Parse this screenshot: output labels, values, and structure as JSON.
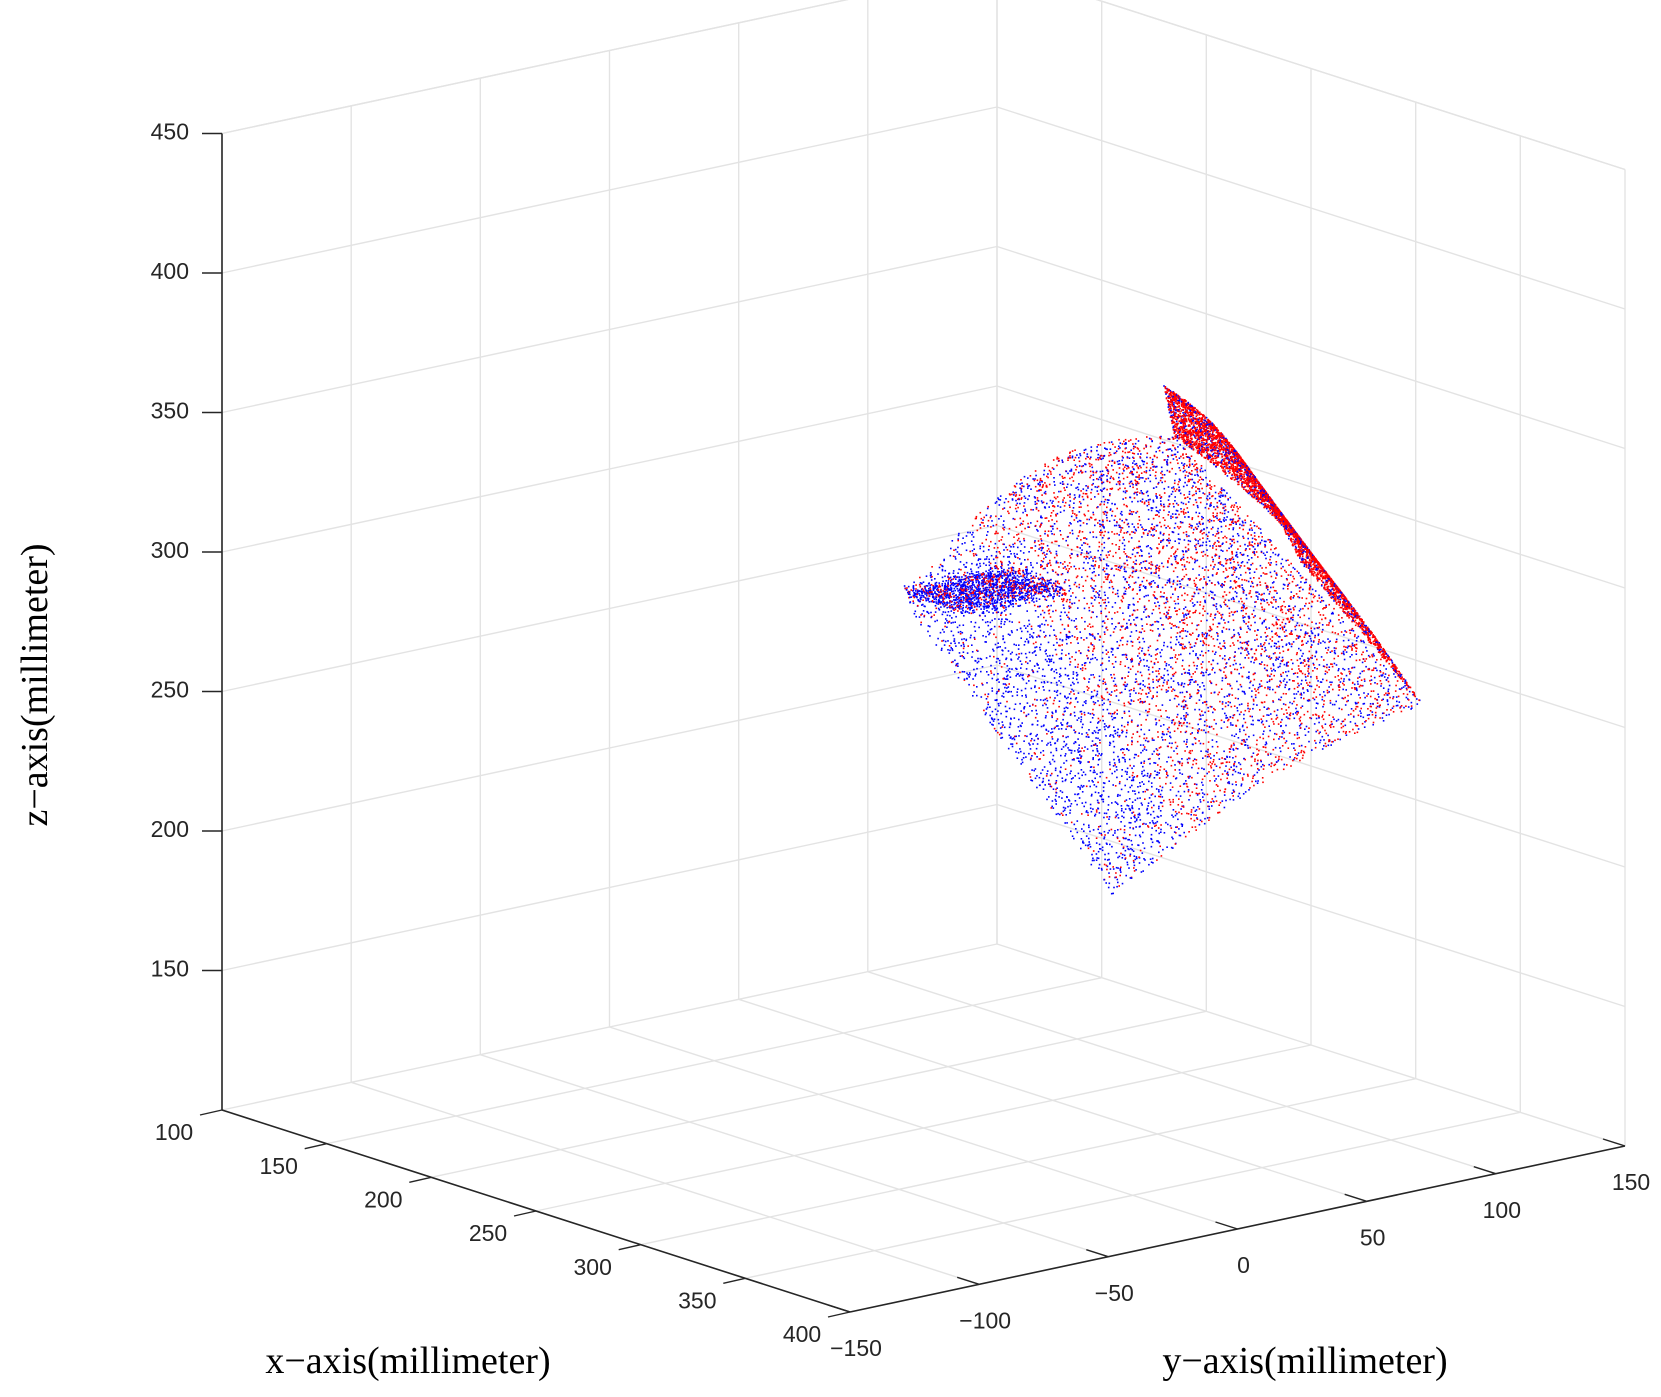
{
  "chart_data": {
    "type": "scatter",
    "view": "3d",
    "title": "",
    "xlabel": "x−axis(millimeter)",
    "ylabel": "y−axis(millimeter)",
    "zlabel": "z−axis(millimeter)",
    "xlim": [
      100,
      400
    ],
    "ylim": [
      -150,
      150
    ],
    "zlim": [
      100,
      450
    ],
    "grid": true,
    "x_ticks": [
      {
        "value": 100,
        "label": "100"
      },
      {
        "value": 150,
        "label": "150"
      },
      {
        "value": 200,
        "label": "200"
      },
      {
        "value": 250,
        "label": "250"
      },
      {
        "value": 300,
        "label": "300"
      },
      {
        "value": 350,
        "label": "350"
      },
      {
        "value": 400,
        "label": "400"
      }
    ],
    "y_ticks": [
      {
        "value": -150,
        "label": "−150"
      },
      {
        "value": -100,
        "label": "−100"
      },
      {
        "value": -50,
        "label": "−50"
      },
      {
        "value": 0,
        "label": "0"
      },
      {
        "value": 50,
        "label": "50"
      },
      {
        "value": 100,
        "label": "100"
      },
      {
        "value": 150,
        "label": "150"
      }
    ],
    "z_ticks": [
      {
        "value": 150,
        "label": "150"
      },
      {
        "value": 200,
        "label": "200"
      },
      {
        "value": 250,
        "label": "250"
      },
      {
        "value": 300,
        "label": "300"
      },
      {
        "value": 350,
        "label": "350"
      },
      {
        "value": 400,
        "label": "400"
      },
      {
        "value": 450,
        "label": "450"
      }
    ],
    "series": [
      {
        "color": "#0000ff",
        "description_points": [
          {
            "x": 270,
            "y": -25,
            "z": 300
          },
          {
            "x": 300,
            "y": -25,
            "z": 300
          },
          {
            "x": 365,
            "y": -20,
            "z": 215
          },
          {
            "x": 395,
            "y": -20,
            "z": 215
          },
          {
            "x": 270,
            "y": 15,
            "z": 300
          },
          {
            "x": 335,
            "y": 125,
            "z": 255
          },
          {
            "x": 240,
            "y": 105,
            "z": 325
          }
        ]
      },
      {
        "color": "#ff0000",
        "description_points": [
          {
            "x": 295,
            "y": -5,
            "z": 300
          },
          {
            "x": 255,
            "y": 40,
            "z": 325
          },
          {
            "x": 210,
            "y": 125,
            "z": 330
          },
          {
            "x": 235,
            "y": 155,
            "z": 270
          },
          {
            "x": 360,
            "y": 60,
            "z": 220
          }
        ]
      }
    ]
  }
}
